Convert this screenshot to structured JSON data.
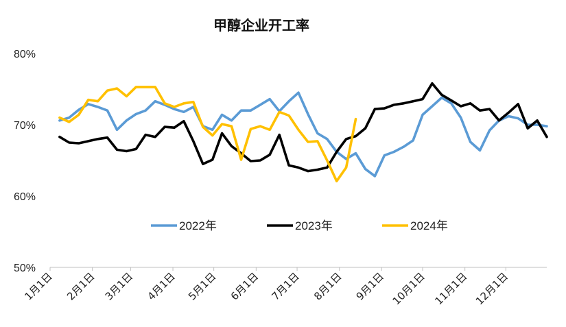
{
  "chart_data": {
    "type": "line",
    "title": "甲醇企业开工率",
    "xlabel": "",
    "ylabel": "",
    "ylim": [
      50,
      80
    ],
    "y_ticks": [
      "50%",
      "60%",
      "70%",
      "80%"
    ],
    "y_tick_values": [
      50,
      60,
      70,
      80
    ],
    "x_range_weeks": [
      0,
      52
    ],
    "x_tick_labels": [
      "1月1日",
      "2月1日",
      "3月1日",
      "4月1日",
      "5月1日",
      "6月1日",
      "7月1日",
      "8月1日",
      "9月1日",
      "10月1日",
      "11月1日",
      "12月1日"
    ],
    "x_tick_weeks": [
      0,
      4.43,
      8.43,
      12.86,
      17.14,
      21.57,
      25.86,
      30.29,
      34.71,
      39.0,
      43.43,
      47.71
    ],
    "grid": false,
    "legend_position": "bottom-center",
    "series": [
      {
        "name": "2022年",
        "color": "#5B9BD5",
        "x": [
          1,
          2,
          3,
          4,
          5,
          6,
          7,
          8,
          9,
          10,
          11,
          12,
          13,
          14,
          15,
          16,
          17,
          18,
          19,
          20,
          21,
          22,
          23,
          24,
          25,
          26,
          27,
          28,
          29,
          30,
          31,
          32,
          33,
          34,
          35,
          36,
          37,
          38,
          39,
          40,
          41,
          42,
          43,
          44,
          45,
          46,
          47,
          48,
          49,
          50,
          51,
          52
        ],
        "values": [
          70.6,
          71.0,
          72.1,
          72.9,
          72.5,
          72.0,
          69.3,
          70.6,
          71.5,
          72.0,
          73.3,
          72.8,
          72.2,
          71.8,
          72.5,
          69.8,
          69.3,
          71.4,
          70.6,
          72.0,
          72.0,
          72.8,
          73.6,
          71.9,
          73.3,
          74.5,
          71.5,
          68.8,
          68.0,
          66.2,
          65.2,
          66.0,
          63.8,
          62.8,
          65.7,
          66.2,
          66.9,
          67.8,
          71.4,
          72.6,
          73.8,
          73.0,
          71.0,
          67.6,
          66.4,
          69.2,
          70.6,
          71.2,
          70.9,
          70.0,
          70.0,
          69.8
        ]
      },
      {
        "name": "2023年",
        "color": "#000000",
        "x": [
          1,
          2,
          3,
          4,
          5,
          6,
          7,
          8,
          9,
          10,
          11,
          12,
          13,
          14,
          15,
          16,
          17,
          18,
          19,
          20,
          21,
          22,
          23,
          24,
          25,
          26,
          27,
          28,
          29,
          30,
          31,
          32,
          33,
          34,
          35,
          36,
          37,
          38,
          39,
          40,
          41,
          42,
          43,
          44,
          45,
          46,
          47,
          48,
          49,
          50,
          51,
          52
        ],
        "values": [
          68.3,
          67.5,
          67.4,
          67.7,
          68.0,
          68.2,
          66.5,
          66.3,
          66.6,
          68.6,
          68.3,
          69.7,
          69.6,
          70.5,
          67.7,
          64.5,
          65.1,
          68.8,
          67.0,
          66.0,
          64.9,
          65.0,
          65.8,
          68.6,
          64.3,
          64.0,
          63.5,
          63.7,
          64.0,
          66.2,
          68.0,
          68.4,
          69.5,
          72.2,
          72.3,
          72.8,
          73.0,
          73.3,
          73.6,
          75.8,
          74.2,
          73.4,
          72.6,
          73.0,
          72.0,
          72.2,
          70.6,
          71.7,
          72.9,
          69.5,
          70.6,
          68.3
        ]
      },
      {
        "name": "2024年",
        "color": "#FFC000",
        "x": [
          1,
          2,
          3,
          4,
          5,
          6,
          7,
          8,
          9,
          10,
          11,
          12,
          13,
          14,
          15,
          16,
          17,
          18,
          19,
          20,
          21,
          22,
          23,
          24,
          25,
          26,
          27,
          28,
          29,
          30,
          31,
          32
        ],
        "values": [
          71.0,
          70.4,
          71.4,
          73.5,
          73.3,
          74.8,
          75.1,
          74.0,
          75.3,
          75.3,
          75.3,
          73.0,
          72.5,
          73.0,
          73.2,
          69.7,
          68.5,
          70.1,
          69.8,
          65.1,
          69.4,
          69.8,
          69.3,
          71.8,
          71.3,
          69.3,
          67.6,
          67.7,
          65.0,
          62.1,
          64.0,
          70.8
        ]
      }
    ]
  }
}
